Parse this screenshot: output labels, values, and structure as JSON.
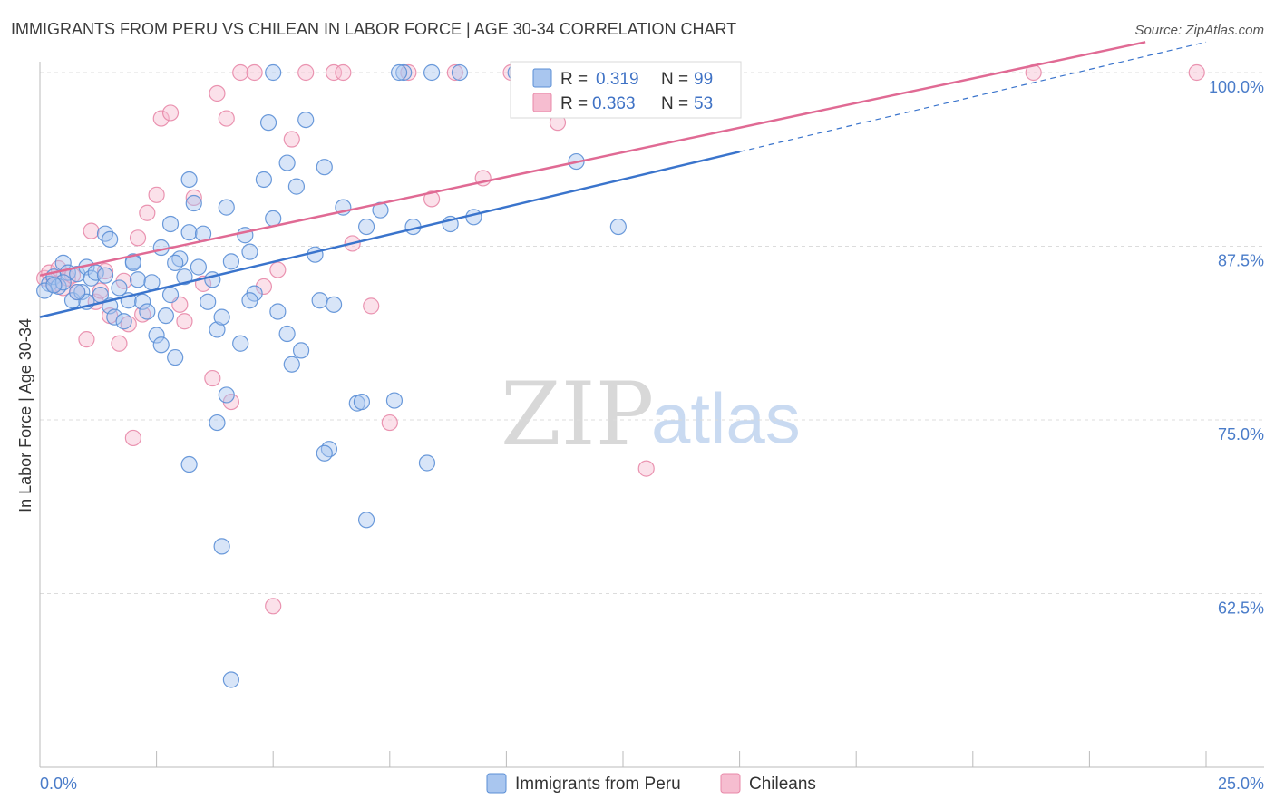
{
  "chart_data": {
    "type": "scatter",
    "title": "IMMIGRANTS FROM PERU VS CHILEAN IN LABOR FORCE | AGE 30-34 CORRELATION CHART",
    "source": "Source: ZipAtlas.com",
    "xlabel": "",
    "ylabel": "In Labor Force | Age 30-34",
    "xlim": [
      0,
      25
    ],
    "ylim": [
      50,
      100
    ],
    "x_tick_labels": [
      "0.0%",
      "25.0%"
    ],
    "y_ticks": [
      62.5,
      75.0,
      87.5,
      100.0
    ],
    "y_tick_labels": [
      "62.5%",
      "75.0%",
      "87.5%",
      "100.0%"
    ],
    "watermark": {
      "zip": "ZIP",
      "atlas": "atlas"
    },
    "legend": {
      "rows": [
        {
          "r_label": "R =",
          "r_value": "0.319",
          "n_label": "N =",
          "n_value": "99"
        },
        {
          "r_label": "R =",
          "r_value": "0.363",
          "n_label": "N =",
          "n_value": "53"
        }
      ]
    },
    "colors": {
      "peru_fill": "#a9c6ef",
      "peru_stroke": "#5b8fd6",
      "peru_line": "#3a74cc",
      "chile_fill": "#f6bdd0",
      "chile_stroke": "#e888a8",
      "chile_line": "#e06a94",
      "grid": "#dcdcdc",
      "axis": "#bbbbbb"
    },
    "series": [
      {
        "name": "Immigrants from Peru",
        "trend": {
          "x0": 0,
          "y0": 82.4,
          "x1": 15,
          "y1": 94.3,
          "dash_to_x": 25,
          "dash_to_y": 102.2
        },
        "points": [
          [
            0.2,
            84.8
          ],
          [
            0.3,
            85.3
          ],
          [
            0.4,
            84.6
          ],
          [
            0.5,
            86.3
          ],
          [
            0.6,
            85.6
          ],
          [
            0.7,
            83.6
          ],
          [
            0.8,
            85.5
          ],
          [
            0.9,
            84.2
          ],
          [
            1.0,
            86.0
          ],
          [
            1.1,
            85.2
          ],
          [
            1.2,
            85.6
          ],
          [
            1.3,
            84.0
          ],
          [
            1.4,
            85.4
          ],
          [
            1.5,
            83.2
          ],
          [
            1.6,
            82.4
          ],
          [
            1.7,
            84.5
          ],
          [
            1.8,
            82.1
          ],
          [
            1.9,
            83.6
          ],
          [
            2.0,
            86.4
          ],
          [
            2.1,
            85.1
          ],
          [
            2.2,
            83.5
          ],
          [
            2.3,
            82.8
          ],
          [
            2.4,
            84.9
          ],
          [
            2.5,
            81.1
          ],
          [
            2.6,
            80.4
          ],
          [
            2.7,
            82.5
          ],
          [
            2.8,
            84.0
          ],
          [
            2.9,
            79.5
          ],
          [
            3.0,
            86.6
          ],
          [
            3.1,
            85.3
          ],
          [
            1.4,
            88.4
          ],
          [
            1.5,
            88.0
          ],
          [
            2.0,
            86.3
          ],
          [
            2.8,
            89.1
          ],
          [
            3.2,
            88.5
          ],
          [
            3.4,
            86.0
          ],
          [
            3.6,
            83.5
          ],
          [
            3.7,
            85.1
          ],
          [
            3.8,
            81.5
          ],
          [
            3.9,
            82.4
          ],
          [
            4.1,
            86.4
          ],
          [
            4.3,
            80.5
          ],
          [
            4.4,
            88.3
          ],
          [
            4.5,
            87.1
          ],
          [
            4.6,
            84.1
          ],
          [
            4.8,
            92.3
          ],
          [
            4.9,
            96.4
          ],
          [
            5.0,
            89.5
          ],
          [
            5.1,
            82.8
          ],
          [
            5.3,
            81.2
          ],
          [
            5.4,
            79.0
          ],
          [
            5.6,
            80.0
          ],
          [
            5.9,
            86.9
          ],
          [
            6.0,
            83.6
          ],
          [
            6.3,
            83.3
          ],
          [
            6.5,
            90.3
          ],
          [
            6.8,
            76.2
          ],
          [
            7.0,
            88.9
          ],
          [
            7.3,
            90.1
          ],
          [
            7.6,
            76.4
          ],
          [
            5.5,
            91.8
          ],
          [
            5.7,
            96.6
          ],
          [
            6.1,
            93.2
          ],
          [
            8.0,
            88.9
          ],
          [
            8.8,
            89.1
          ],
          [
            9.3,
            89.6
          ],
          [
            11.5,
            93.6
          ],
          [
            12.4,
            88.9
          ],
          [
            4.0,
            90.3
          ],
          [
            3.5,
            88.4
          ],
          [
            3.2,
            92.3
          ],
          [
            3.3,
            90.6
          ],
          [
            2.9,
            86.3
          ],
          [
            2.6,
            87.4
          ],
          [
            1.0,
            83.5
          ],
          [
            0.8,
            84.2
          ],
          [
            0.5,
            84.9
          ],
          [
            0.1,
            84.3
          ],
          [
            0.3,
            84.7
          ],
          [
            4.0,
            76.8
          ],
          [
            3.8,
            74.8
          ],
          [
            6.2,
            72.9
          ],
          [
            6.1,
            72.6
          ],
          [
            8.3,
            71.9
          ],
          [
            3.2,
            71.8
          ],
          [
            7.0,
            67.8
          ],
          [
            3.9,
            65.9
          ],
          [
            4.1,
            56.3
          ],
          [
            5.0,
            100.0
          ],
          [
            7.8,
            100.0
          ],
          [
            9.0,
            100.0
          ],
          [
            10.2,
            100.0
          ],
          [
            14.5,
            100.0
          ],
          [
            7.7,
            100.0
          ],
          [
            8.4,
            100.0
          ],
          [
            10.8,
            100.0
          ],
          [
            5.3,
            93.5
          ],
          [
            6.9,
            76.3
          ],
          [
            4.5,
            83.6
          ]
        ]
      },
      {
        "name": "Chileans",
        "trend": {
          "x0": 0,
          "y0": 85.4,
          "x1": 23.7,
          "y1": 102.2
        },
        "points": [
          [
            0.1,
            85.2
          ],
          [
            0.2,
            85.6
          ],
          [
            0.3,
            84.8
          ],
          [
            0.4,
            85.9
          ],
          [
            0.5,
            84.5
          ],
          [
            0.6,
            85.2
          ],
          [
            0.8,
            84.2
          ],
          [
            1.0,
            80.8
          ],
          [
            1.2,
            83.5
          ],
          [
            1.4,
            85.7
          ],
          [
            1.5,
            82.5
          ],
          [
            1.7,
            80.5
          ],
          [
            1.8,
            85.0
          ],
          [
            1.9,
            81.9
          ],
          [
            2.0,
            73.7
          ],
          [
            2.1,
            88.1
          ],
          [
            2.3,
            89.9
          ],
          [
            2.5,
            91.2
          ],
          [
            2.6,
            96.7
          ],
          [
            2.8,
            97.1
          ],
          [
            3.0,
            83.3
          ],
          [
            3.1,
            82.1
          ],
          [
            3.3,
            91.0
          ],
          [
            3.5,
            84.8
          ],
          [
            3.7,
            78.0
          ],
          [
            3.8,
            98.5
          ],
          [
            4.0,
            96.7
          ],
          [
            4.1,
            76.3
          ],
          [
            4.3,
            100.0
          ],
          [
            4.6,
            100.0
          ],
          [
            4.8,
            84.6
          ],
          [
            5.0,
            61.6
          ],
          [
            5.1,
            85.8
          ],
          [
            5.4,
            95.2
          ],
          [
            5.7,
            100.0
          ],
          [
            6.3,
            100.0
          ],
          [
            6.5,
            100.0
          ],
          [
            6.7,
            87.7
          ],
          [
            7.1,
            83.2
          ],
          [
            7.5,
            74.8
          ],
          [
            7.9,
            100.0
          ],
          [
            8.4,
            90.9
          ],
          [
            8.9,
            100.0
          ],
          [
            9.5,
            92.4
          ],
          [
            10.1,
            100.0
          ],
          [
            11.1,
            96.4
          ],
          [
            13.0,
            71.5
          ],
          [
            21.3,
            100.0
          ],
          [
            24.8,
            100.0
          ],
          [
            1.1,
            88.6
          ],
          [
            0.7,
            85.4
          ],
          [
            2.2,
            82.6
          ],
          [
            1.3,
            84.3
          ]
        ]
      }
    ]
  }
}
